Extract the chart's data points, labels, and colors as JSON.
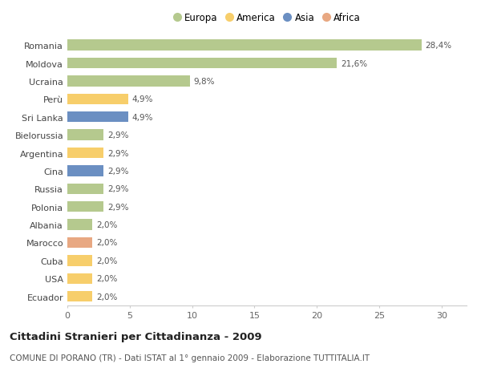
{
  "countries": [
    "Romania",
    "Moldova",
    "Ucraina",
    "Perù",
    "Sri Lanka",
    "Bielorussia",
    "Argentina",
    "Cina",
    "Russia",
    "Polonia",
    "Albania",
    "Marocco",
    "Cuba",
    "USA",
    "Ecuador"
  ],
  "values": [
    28.4,
    21.6,
    9.8,
    4.9,
    4.9,
    2.9,
    2.9,
    2.9,
    2.9,
    2.9,
    2.0,
    2.0,
    2.0,
    2.0,
    2.0
  ],
  "labels": [
    "28,4%",
    "21,6%",
    "9,8%",
    "4,9%",
    "4,9%",
    "2,9%",
    "2,9%",
    "2,9%",
    "2,9%",
    "2,9%",
    "2,0%",
    "2,0%",
    "2,0%",
    "2,0%",
    "2,0%"
  ],
  "continents": [
    "Europa",
    "Europa",
    "Europa",
    "America",
    "Asia",
    "Europa",
    "America",
    "Asia",
    "Europa",
    "Europa",
    "Europa",
    "Africa",
    "America",
    "America",
    "America"
  ],
  "colors": {
    "Europa": "#b5c98e",
    "America": "#f7ce6b",
    "Asia": "#6b8fc2",
    "Africa": "#e8a882"
  },
  "xlim": [
    0,
    32
  ],
  "xticks": [
    0,
    5,
    10,
    15,
    20,
    25,
    30
  ],
  "title": "Cittadini Stranieri per Cittadinanza - 2009",
  "subtitle": "COMUNE DI PORANO (TR) - Dati ISTAT al 1° gennaio 2009 - Elaborazione TUTTITALIA.IT",
  "background_color": "#ffffff",
  "bar_height": 0.6,
  "title_fontsize": 9.5,
  "subtitle_fontsize": 7.5,
  "label_fontsize": 7.5,
  "ytick_fontsize": 8,
  "xtick_fontsize": 8,
  "legend_fontsize": 8.5,
  "legend_order": [
    "Europa",
    "America",
    "Asia",
    "Africa"
  ]
}
